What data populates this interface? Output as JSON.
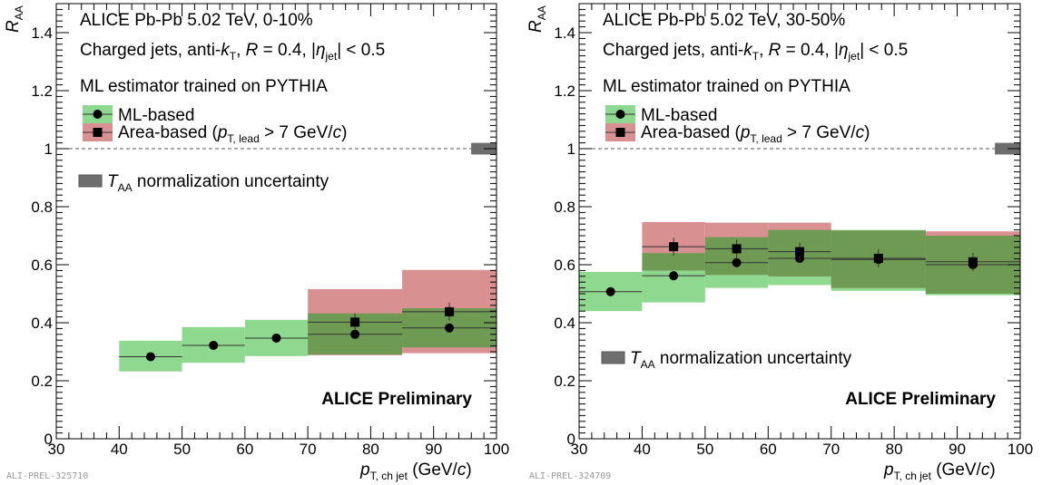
{
  "figure": {
    "xlabel_main": "p",
    "xlabel_sub": "T, ch jet",
    "xlabel_unit_pre": " (GeV/",
    "xlabel_unit_c": "c",
    "xlabel_unit_post": ")",
    "ylabel_main": "R",
    "ylabel_sub": "AA",
    "legend_header": "ML estimator trained on PYTHIA",
    "legend_ml": "ML-based",
    "legend_area_pre": "Area-based (",
    "legend_area_p": "p",
    "legend_area_sub": "T, lead",
    "legend_area_post": " > 7 GeV/",
    "legend_area_c": "c",
    "legend_area_close": ")",
    "taa_main": "T",
    "taa_sub": "AA",
    "taa_text": " normalization uncertainty",
    "preliminary": "ALICE Preliminary",
    "line2_a": "Charged jets, anti-",
    "line2_k": "k",
    "line2_ksub": "T",
    "line2_b": ", ",
    "line2_R": "R",
    "line2_c": " = 0.4, |",
    "line2_eta": "η",
    "line2_etasub": "jet",
    "line2_d": "| < 0.5"
  },
  "colors": {
    "ml_band": "#8fd88f",
    "area_band": "#d89090",
    "overlap": "#6f9a54",
    "taa_box": "#6e6e6e",
    "marker": "#000000"
  },
  "chart_data": [
    {
      "type": "scatter",
      "title": "ALICE Pb-Pb 5.02 TeV, 0-10%",
      "tag": "ALI-PREL-325710",
      "xlim": [
        30,
        100
      ],
      "ylim": [
        0,
        1.5
      ],
      "xticks": [
        30,
        40,
        50,
        60,
        70,
        80,
        90,
        100
      ],
      "yticks": [
        0,
        0.2,
        0.4,
        0.6,
        0.8,
        1,
        1.2,
        1.4
      ],
      "series": [
        {
          "name": "ML-based",
          "marker": "circle",
          "points": [
            {
              "xlo": 40,
              "xhi": 50,
              "x": 45,
              "y": 0.283,
              "syslo": 0.232,
              "syshi": 0.338
            },
            {
              "xlo": 50,
              "xhi": 60,
              "x": 55,
              "y": 0.322,
              "syslo": 0.262,
              "syshi": 0.385
            },
            {
              "xlo": 60,
              "xhi": 70,
              "x": 65,
              "y": 0.347,
              "syslo": 0.285,
              "syshi": 0.41
            },
            {
              "xlo": 70,
              "xhi": 85,
              "x": 77.5,
              "y": 0.36,
              "syslo": 0.29,
              "syshi": 0.432
            },
            {
              "xlo": 85,
              "xhi": 100,
              "x": 92.5,
              "y": 0.382,
              "syslo": 0.315,
              "syshi": 0.45
            }
          ]
        },
        {
          "name": "Area-based",
          "marker": "square",
          "points": [
            {
              "xlo": 70,
              "xhi": 85,
              "x": 77.5,
              "y": 0.402,
              "syslo": 0.288,
              "syshi": 0.516
            },
            {
              "xlo": 85,
              "xhi": 100,
              "x": 92.5,
              "y": 0.438,
              "syslo": 0.295,
              "syshi": 0.582
            }
          ]
        }
      ],
      "taa_uncertainty": {
        "x": 98,
        "lo": 0.98,
        "hi": 1.02
      }
    },
    {
      "type": "scatter",
      "title": "ALICE Pb-Pb 5.02 TeV, 30-50%",
      "tag": "ALI-PREL-324709",
      "xlim": [
        30,
        100
      ],
      "ylim": [
        0,
        1.5
      ],
      "xticks": [
        30,
        40,
        50,
        60,
        70,
        80,
        90,
        100
      ],
      "yticks": [
        0,
        0.2,
        0.4,
        0.6,
        0.8,
        1,
        1.2,
        1.4
      ],
      "series": [
        {
          "name": "ML-based",
          "marker": "circle",
          "points": [
            {
              "xlo": 30,
              "xhi": 40,
              "x": 35,
              "y": 0.507,
              "syslo": 0.44,
              "syshi": 0.575
            },
            {
              "xlo": 40,
              "xhi": 50,
              "x": 45,
              "y": 0.562,
              "syslo": 0.47,
              "syshi": 0.64
            },
            {
              "xlo": 50,
              "xhi": 60,
              "x": 55,
              "y": 0.607,
              "syslo": 0.52,
              "syshi": 0.695
            },
            {
              "xlo": 60,
              "xhi": 70,
              "x": 65,
              "y": 0.622,
              "syslo": 0.53,
              "syshi": 0.72
            },
            {
              "xlo": 70,
              "xhi": 85,
              "x": 77.5,
              "y": 0.618,
              "syslo": 0.51,
              "syshi": 0.72
            },
            {
              "xlo": 85,
              "xhi": 100,
              "x": 92.5,
              "y": 0.6,
              "syslo": 0.495,
              "syshi": 0.7
            }
          ]
        },
        {
          "name": "Area-based",
          "marker": "square",
          "points": [
            {
              "xlo": 40,
              "xhi": 50,
              "x": 45,
              "y": 0.662,
              "syslo": 0.58,
              "syshi": 0.747
            },
            {
              "xlo": 50,
              "xhi": 60,
              "x": 55,
              "y": 0.655,
              "syslo": 0.565,
              "syshi": 0.745
            },
            {
              "xlo": 60,
              "xhi": 70,
              "x": 65,
              "y": 0.645,
              "syslo": 0.56,
              "syshi": 0.745
            },
            {
              "xlo": 70,
              "xhi": 85,
              "x": 77.5,
              "y": 0.622,
              "syslo": 0.52,
              "syshi": 0.718
            },
            {
              "xlo": 85,
              "xhi": 100,
              "x": 92.5,
              "y": 0.61,
              "syslo": 0.5,
              "syshi": 0.715
            }
          ]
        }
      ],
      "taa_uncertainty": {
        "x": 98,
        "lo": 0.98,
        "hi": 1.02
      }
    }
  ]
}
